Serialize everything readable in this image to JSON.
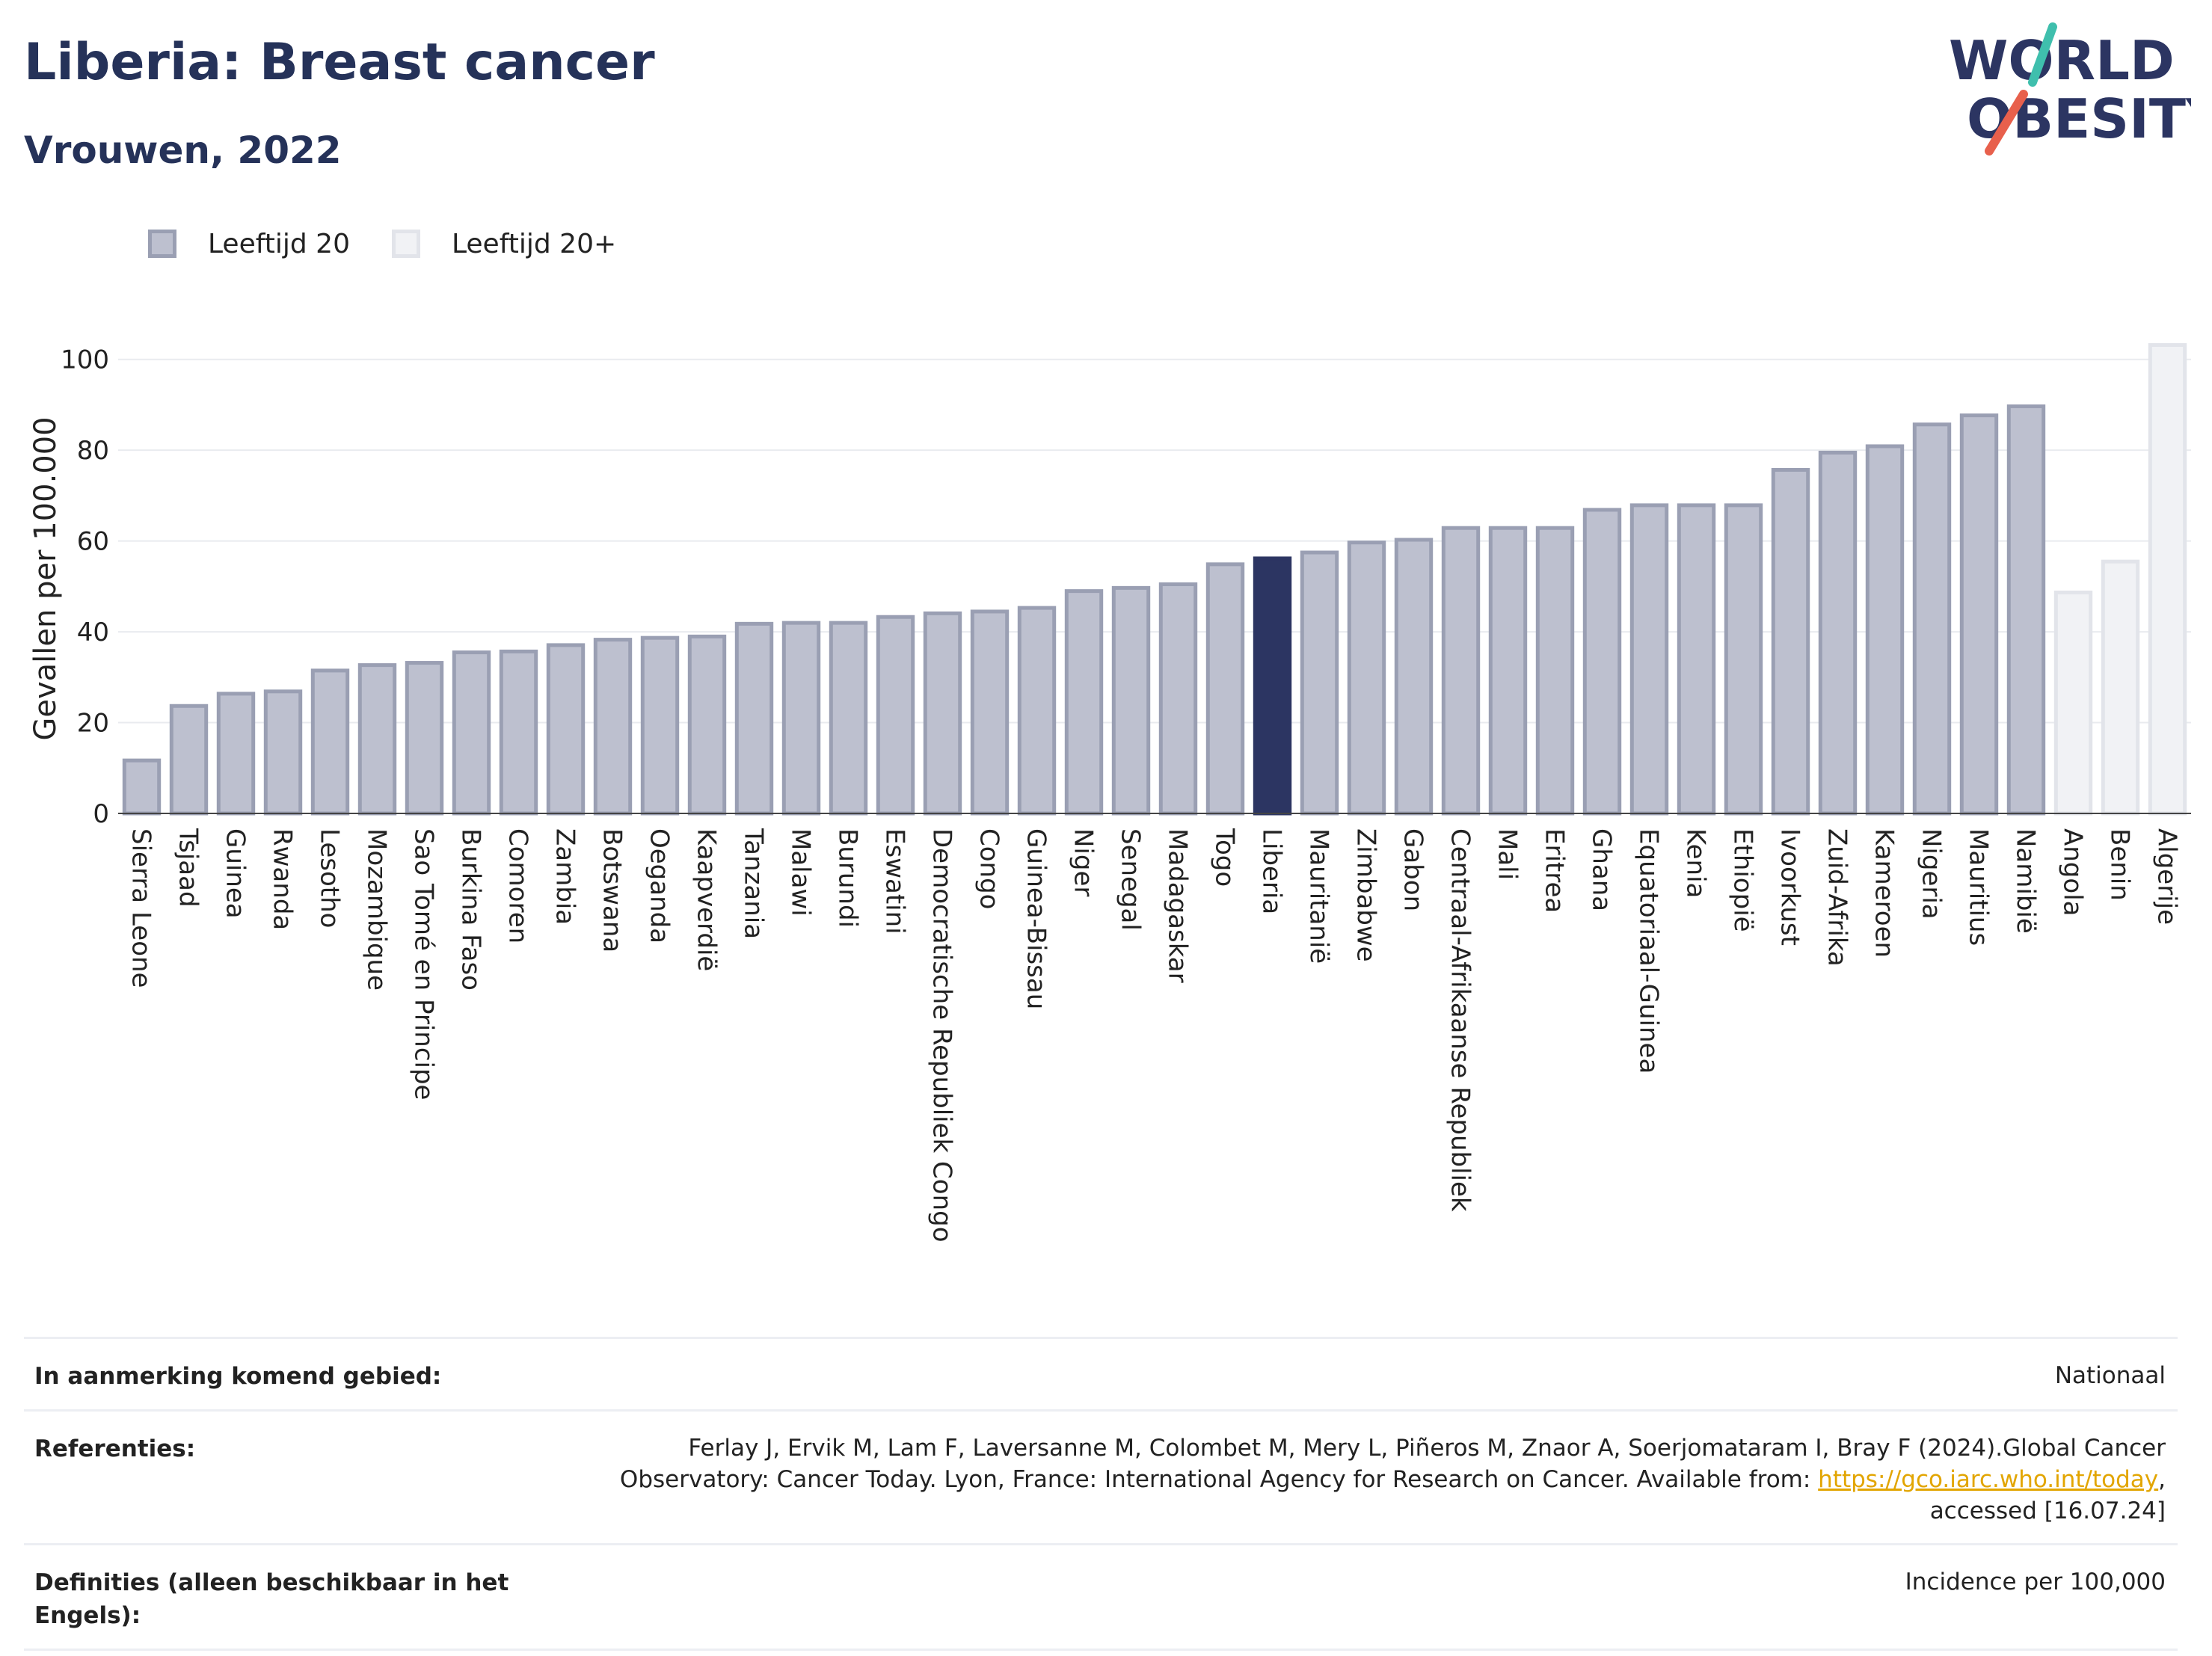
{
  "header": {
    "title": "Liberia: Breast cancer",
    "subtitle": "Vrouwen, 2022"
  },
  "logo": {
    "line1": "WORLD",
    "line2": "OBESITY",
    "accent_teal": "#3fbfad",
    "accent_coral": "#e8604c",
    "text_color": "#2c3562"
  },
  "legend": {
    "items": [
      {
        "label": "Leeftijd 20",
        "color": "#bdc0cf"
      },
      {
        "label": "Leeftijd 20+",
        "color": "#f1f2f5"
      }
    ]
  },
  "chart_data": {
    "type": "bar",
    "title": "Liberia: Breast cancer",
    "subtitle": "Vrouwen, 2022",
    "ylabel": "Gevallen per 100.000",
    "xlabel": "",
    "ylim": [
      0,
      110
    ],
    "yticks": [
      0,
      20,
      40,
      60,
      80,
      100
    ],
    "grid": true,
    "legend_position": "top-left",
    "highlight": "Liberia",
    "colors": {
      "age20": "#bdc0cf",
      "age20_border": "#9a9fb3",
      "age20plus": "#f1f2f5",
      "age20plus_border": "#e2e4ea",
      "highlight": "#2c3562"
    },
    "categories": [
      "Sierra Leone",
      "Tsjaad",
      "Guinea",
      "Rwanda",
      "Lesotho",
      "Mozambique",
      "Sao Tomé en Principe",
      "Burkina Faso",
      "Comoren",
      "Zambia",
      "Botswana",
      "Oeganda",
      "Kaapverdië",
      "Tanzania",
      "Malawi",
      "Burundi",
      "Eswatini",
      "Democratische Republiek Congo",
      "Congo",
      "Guinea-Bissau",
      "Niger",
      "Senegal",
      "Madagaskar",
      "Togo",
      "Liberia",
      "Mauritanië",
      "Zimbabwe",
      "Gabon",
      "Centraal-Afrikaanse Republiek",
      "Mali",
      "Eritrea",
      "Ghana",
      "Equatoriaal-Guinea",
      "Kenia",
      "Ethiopië",
      "Ivoorkust",
      "Zuid-Afrika",
      "Kameroen",
      "Nigeria",
      "Mauritius",
      "Namibië",
      "Angola",
      "Benin",
      "Algerije"
    ],
    "values": [
      12,
      24,
      26.7,
      27.2,
      31.8,
      33,
      33.5,
      35.8,
      36,
      37.4,
      38.6,
      39,
      39.3,
      42.1,
      42.3,
      42.3,
      43.6,
      44.4,
      44.8,
      45.6,
      49.3,
      50,
      50.8,
      55.2,
      56.5,
      57.8,
      60,
      60.6,
      63.2,
      63.2,
      63.2,
      67.2,
      68.2,
      68.2,
      68.2,
      76,
      79.8,
      81.2,
      86,
      88,
      90,
      49,
      55.8,
      103.5
    ],
    "groups": [
      "Leeftijd 20",
      "Leeftijd 20",
      "Leeftijd 20",
      "Leeftijd 20",
      "Leeftijd 20",
      "Leeftijd 20",
      "Leeftijd 20",
      "Leeftijd 20",
      "Leeftijd 20",
      "Leeftijd 20",
      "Leeftijd 20",
      "Leeftijd 20",
      "Leeftijd 20",
      "Leeftijd 20",
      "Leeftijd 20",
      "Leeftijd 20",
      "Leeftijd 20",
      "Leeftijd 20",
      "Leeftijd 20",
      "Leeftijd 20",
      "Leeftijd 20",
      "Leeftijd 20",
      "Leeftijd 20",
      "Leeftijd 20",
      "Leeftijd 20",
      "Leeftijd 20",
      "Leeftijd 20",
      "Leeftijd 20",
      "Leeftijd 20",
      "Leeftijd 20",
      "Leeftijd 20",
      "Leeftijd 20",
      "Leeftijd 20",
      "Leeftijd 20",
      "Leeftijd 20",
      "Leeftijd 20",
      "Leeftijd 20",
      "Leeftijd 20",
      "Leeftijd 20",
      "Leeftijd 20",
      "Leeftijd 20",
      "Leeftijd 20+",
      "Leeftijd 20+",
      "Leeftijd 20+"
    ]
  },
  "info": {
    "region_label": "In aanmerking komend gebied:",
    "region_value": "Nationaal",
    "references_label": "Referenties:",
    "references_line1": "Ferlay J, Ervik M, Lam F, Laversanne M, Colombet M, Mery L, Piñeros M, Znaor A, Soerjomataram I, Bray F (2024).Global Cancer",
    "references_line2": "Observatory: Cancer Today. Lyon, France: International Agency for Research on Cancer. Available from: ",
    "references_link": "https://gco.iarc.who.int/today",
    "references_after_link": ",",
    "references_line3": "accessed [16.07.24]",
    "definitions_label": "Definities (alleen beschikbaar in het Engels):",
    "definitions_value": "Incidence per 100,000"
  }
}
